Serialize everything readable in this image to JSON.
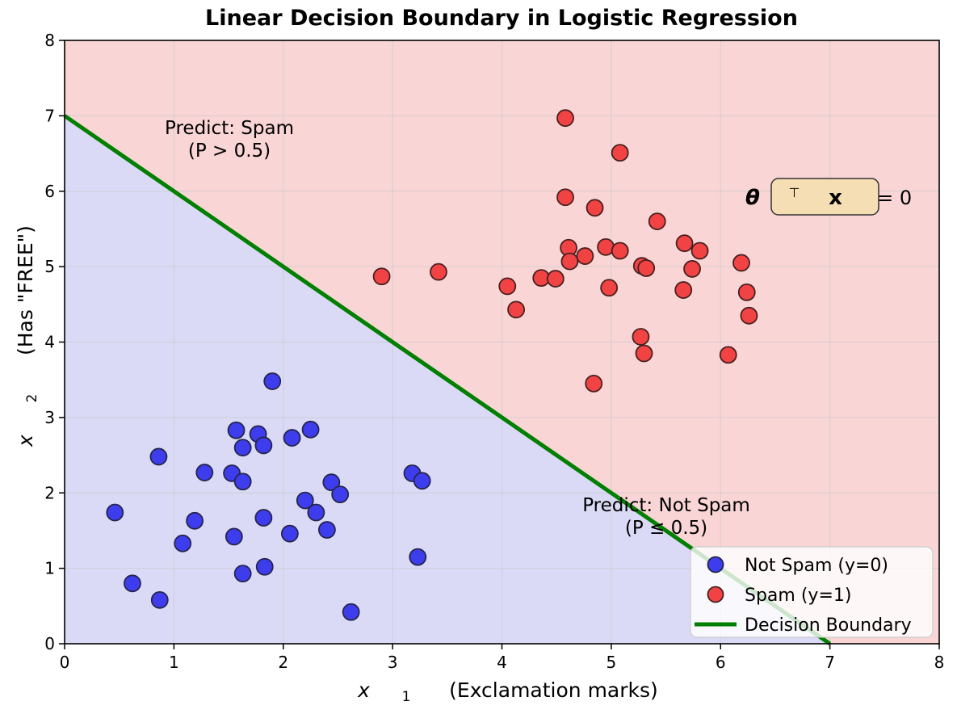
{
  "chart_data": {
    "type": "scatter",
    "title": "Linear Decision Boundary in Logistic Regression",
    "xlabel": "x1 (Exclamation marks)",
    "ylabel": "x2 (Has \"FREE\")",
    "xlabel_parts": {
      "var": "x",
      "sub": "1",
      "rest": " (Exclamation marks)"
    },
    "ylabel_parts": {
      "var": "x",
      "sub": "2",
      "rest": " (Has \"FREE\")"
    },
    "xlim": [
      0,
      8
    ],
    "ylim": [
      0,
      8
    ],
    "xticks": [
      0,
      1,
      2,
      3,
      4,
      5,
      6,
      7,
      8
    ],
    "yticks": [
      0,
      1,
      2,
      3,
      4,
      5,
      6,
      7,
      8
    ],
    "grid": true,
    "legend_position": "lower right",
    "series": [
      {
        "name": "Not Spam (y=0)",
        "class_value": 0,
        "fill": "#3d3dee",
        "edge": "#25254c",
        "points": [
          [
            0.46,
            1.74
          ],
          [
            0.62,
            0.8
          ],
          [
            0.86,
            2.48
          ],
          [
            0.87,
            0.58
          ],
          [
            1.08,
            1.33
          ],
          [
            1.19,
            1.63
          ],
          [
            1.28,
            2.27
          ],
          [
            1.53,
            2.26
          ],
          [
            1.55,
            1.42
          ],
          [
            1.57,
            2.83
          ],
          [
            1.63,
            2.6
          ],
          [
            1.63,
            2.15
          ],
          [
            1.63,
            0.93
          ],
          [
            1.77,
            2.78
          ],
          [
            1.82,
            2.63
          ],
          [
            1.82,
            1.67
          ],
          [
            1.83,
            1.02
          ],
          [
            1.9,
            3.48
          ],
          [
            2.06,
            1.46
          ],
          [
            2.08,
            2.73
          ],
          [
            2.2,
            1.9
          ],
          [
            2.25,
            2.84
          ],
          [
            2.3,
            1.74
          ],
          [
            2.4,
            1.51
          ],
          [
            2.44,
            2.14
          ],
          [
            2.52,
            1.98
          ],
          [
            2.62,
            0.42
          ],
          [
            3.18,
            2.26
          ],
          [
            3.23,
            1.15
          ],
          [
            3.27,
            2.16
          ]
        ]
      },
      {
        "name": "Spam (y=1)",
        "class_value": 1,
        "fill": "#f14343",
        "edge": "#48201f",
        "points": [
          [
            2.9,
            4.87
          ],
          [
            3.42,
            4.93
          ],
          [
            4.05,
            4.74
          ],
          [
            4.13,
            4.43
          ],
          [
            4.36,
            4.85
          ],
          [
            4.49,
            4.84
          ],
          [
            4.58,
            6.97
          ],
          [
            4.58,
            5.92
          ],
          [
            4.61,
            5.25
          ],
          [
            4.62,
            5.07
          ],
          [
            4.76,
            5.14
          ],
          [
            4.84,
            3.45
          ],
          [
            4.85,
            5.78
          ],
          [
            4.95,
            5.26
          ],
          [
            4.98,
            4.72
          ],
          [
            5.08,
            6.51
          ],
          [
            5.08,
            5.21
          ],
          [
            5.27,
            4.07
          ],
          [
            5.28,
            5.01
          ],
          [
            5.32,
            4.98
          ],
          [
            5.3,
            3.85
          ],
          [
            5.42,
            5.6
          ],
          [
            5.66,
            4.69
          ],
          [
            5.67,
            5.31
          ],
          [
            5.74,
            4.97
          ],
          [
            5.81,
            5.21
          ],
          [
            6.07,
            3.83
          ],
          [
            6.19,
            5.05
          ],
          [
            6.24,
            4.66
          ],
          [
            6.26,
            4.35
          ]
        ]
      }
    ],
    "boundary": {
      "label": "Decision Boundary",
      "from": [
        0,
        7
      ],
      "to": [
        7,
        0
      ],
      "color": "#007f00",
      "width": 5
    },
    "regions": [
      {
        "name": "predict-spam",
        "side": "above boundary",
        "fill": "#f9d5d6"
      },
      {
        "name": "predict-not-spam",
        "side": "below boundary",
        "fill": "#dadaf6"
      }
    ],
    "annotations": [
      {
        "id": "spam",
        "lines": [
          "Predict: Spam",
          "(P > 0.5)"
        ],
        "color": "#8b0000",
        "x": 1.5,
        "y": 6.7
      },
      {
        "id": "not_spam",
        "lines": [
          "Predict: Not Spam",
          "(P ≤ 0.5)"
        ],
        "color": "#00008b",
        "x": 5.5,
        "y": 1.7
      }
    ],
    "formula": {
      "theta": "θ",
      "sup": "⊤",
      "x": "x",
      "rest": " = 0",
      "box_fill": "#f6deb4",
      "box_edge": "#333333",
      "x_data": 6.95,
      "y_data": 5.92
    },
    "legend": {
      "entries": [
        {
          "label": "Not Spam (y=0)",
          "marker": "circle"
        },
        {
          "label": "Spam (y=1)",
          "marker": "circle"
        },
        {
          "label": "Decision Boundary",
          "marker": "line"
        }
      ],
      "bg": "rgba(255,255,255,0.8)",
      "border": "#cccccc"
    },
    "colors": {
      "grid": "#c9c9c9",
      "spine": "#000000",
      "tick": "#000000",
      "text": "#000000"
    }
  }
}
